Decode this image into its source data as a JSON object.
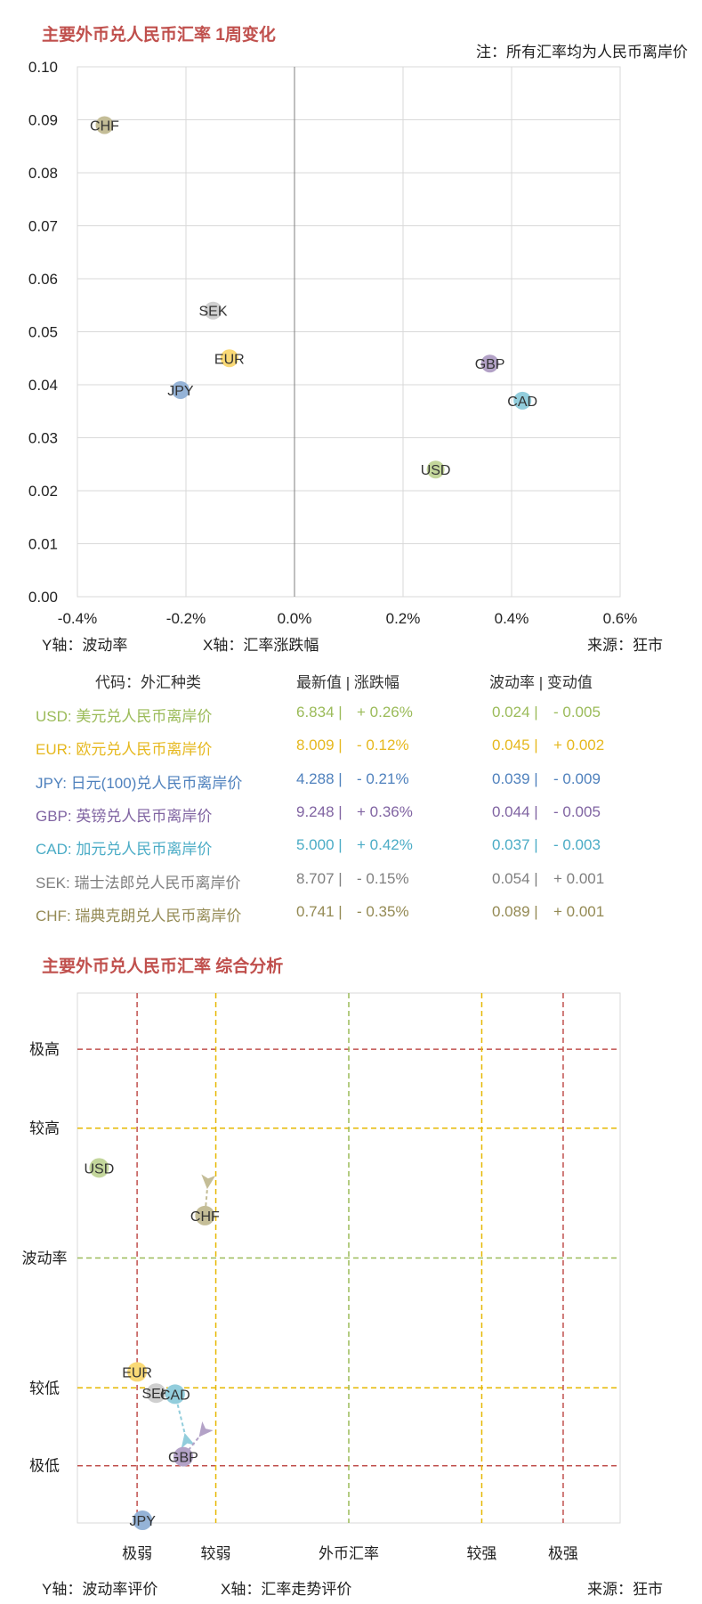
{
  "chart1": {
    "title": "主要外币兑人民币汇率 1周变化",
    "note": "注：所有汇率均为人民币离岸价",
    "ylabel": "Y轴：波动率",
    "xlabel": "X轴：汇率涨跌幅",
    "source": "来源：狂市"
  },
  "table": {
    "header": {
      "code": "代码：外汇种类",
      "latest": "最新值 | 涨跌幅",
      "vol": "波动率 | 变动值"
    },
    "rows": [
      {
        "name": "USD: 美元兑人民币离岸价",
        "latest": "6.834 |",
        "change": "+ 0.26%",
        "vol": "0.024 |",
        "vchange": "- 0.005",
        "color": "#9bbb59"
      },
      {
        "name": "EUR: 欧元兑人民币离岸价",
        "latest": "8.009 |",
        "change": "- 0.12%",
        "vol": "0.045 |",
        "vchange": "+ 0.002",
        "color": "#e6b81e"
      },
      {
        "name": "JPY: 日元(100)兑人民币离岸价",
        "latest": "4.288 |",
        "change": "- 0.21%",
        "vol": "0.039 |",
        "vchange": "- 0.009",
        "color": "#4f81bd"
      },
      {
        "name": "GBP: 英镑兑人民币离岸价",
        "latest": "9.248 |",
        "change": "+ 0.36%",
        "vol": "0.044 |",
        "vchange": "- 0.005",
        "color": "#8064a2"
      },
      {
        "name": "CAD: 加元兑人民币离岸价",
        "latest": "5.000 |",
        "change": "+ 0.42%",
        "vol": "0.037 |",
        "vchange": "- 0.003",
        "color": "#4bacc6"
      },
      {
        "name": "SEK: 瑞士法郎兑人民币离岸价",
        "latest": "8.707 |",
        "change": "- 0.15%",
        "vol": "0.054 |",
        "vchange": "+ 0.001",
        "color": "#7f7f7f"
      },
      {
        "name": "CHF: 瑞典克朗兑人民币离岸价",
        "latest": "0.741 |",
        "change": "- 0.35%",
        "vol": "0.089 |",
        "vchange": "+ 0.001",
        "color": "#948a54"
      }
    ]
  },
  "chart2": {
    "title": "主要外币兑人民币汇率 综合分析",
    "ylabel": "Y轴：波动率评价",
    "xlabel": "X轴：汇率走势评价",
    "source": "来源：狂市"
  },
  "chart_data": [
    {
      "type": "scatter",
      "title": "主要外币兑人民币汇率 1周变化",
      "xlabel": "X轴：汇率涨跌幅",
      "ylabel": "Y轴：波动率",
      "xlim": [
        -0.4,
        0.6
      ],
      "ylim": [
        0,
        0.1
      ],
      "xticks": [
        "-0.4%",
        "-0.2%",
        "0.0%",
        "0.2%",
        "0.4%",
        "0.6%"
      ],
      "yticks": [
        "0.00",
        "0.01",
        "0.02",
        "0.03",
        "0.04",
        "0.05",
        "0.06",
        "0.07",
        "0.08",
        "0.09",
        "0.10"
      ],
      "grid": true,
      "points": [
        {
          "label": "USD",
          "x": 0.26,
          "y": 0.024,
          "color": "#c3d69b"
        },
        {
          "label": "EUR",
          "x": -0.12,
          "y": 0.045,
          "color": "#f9d976"
        },
        {
          "label": "JPY",
          "x": -0.21,
          "y": 0.039,
          "color": "#95b3d7"
        },
        {
          "label": "GBP",
          "x": 0.36,
          "y": 0.044,
          "color": "#b3a2c7"
        },
        {
          "label": "CAD",
          "x": 0.42,
          "y": 0.037,
          "color": "#92cddc"
        },
        {
          "label": "SEK",
          "x": -0.15,
          "y": 0.054,
          "color": "#cfcfcf"
        },
        {
          "label": "CHF",
          "x": -0.35,
          "y": 0.089,
          "color": "#c4bd97"
        }
      ]
    },
    {
      "type": "scatter",
      "title": "主要外币兑人民币汇率 综合分析",
      "xlabel": "X轴：汇率走势评价",
      "ylabel": "Y轴：波动率评价",
      "xlim": [
        0,
        100
      ],
      "ylim": [
        0,
        100
      ],
      "x_levels": [
        {
          "label": "极弱",
          "value": 11,
          "color": "#c0504d"
        },
        {
          "label": "较弱",
          "value": 25.5,
          "color": "#e6b800"
        },
        {
          "label": "外币汇率",
          "value": 50,
          "color": "#9bbb59"
        },
        {
          "label": "较强",
          "value": 74.5,
          "color": "#e6b800"
        },
        {
          "label": "极强",
          "value": 89.5,
          "color": "#c0504d"
        }
      ],
      "y_levels": [
        {
          "label": "极低",
          "value": 10.8,
          "color": "#c0504d"
        },
        {
          "label": "较低",
          "value": 25.5,
          "color": "#e6b800"
        },
        {
          "label": "波动率",
          "value": 50,
          "color": "#9bbb59"
        },
        {
          "label": "较高",
          "value": 74.5,
          "color": "#e6b800"
        },
        {
          "label": "极高",
          "value": 89.4,
          "color": "#c0504d"
        }
      ],
      "points": [
        {
          "label": "USD",
          "x": 4,
          "y": 67,
          "color": "#c3d69b"
        },
        {
          "label": "CHF",
          "x": 23.5,
          "y": 58,
          "color": "#c4bd97",
          "from": [
            24,
            64
          ]
        },
        {
          "label": "EUR",
          "x": 11,
          "y": 28.5,
          "color": "#f9d976"
        },
        {
          "label": "SEK",
          "x": 14.5,
          "y": 24.5,
          "color": "#cfcfcf"
        },
        {
          "label": "CAD",
          "x": 18,
          "y": 24.3,
          "color": "#92cddc",
          "from": [
            20,
            16
          ]
        },
        {
          "label": "GBP",
          "x": 19.5,
          "y": 12.5,
          "color": "#b3a2c7",
          "from": [
            23,
            17
          ]
        },
        {
          "label": "JPY",
          "x": 12,
          "y": 0.5,
          "color": "#95b3d7"
        }
      ]
    }
  ]
}
